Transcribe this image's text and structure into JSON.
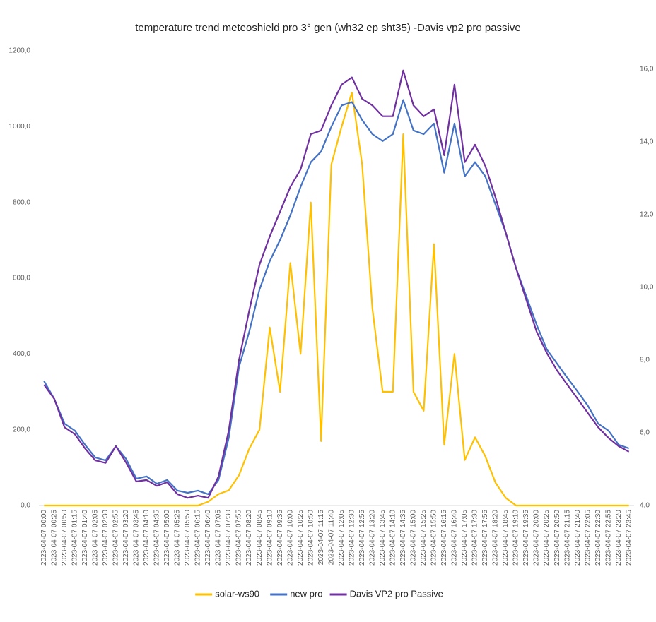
{
  "chart_data": {
    "type": "line",
    "title": "temperature trend meteoshield pro 3° gen (wh32 ep sht35) -Davis vp2 pro passive",
    "categories": [
      "2023-04-07 00:00",
      "2023-04-07 00:25",
      "2023-04-07 00:50",
      "2023-04-07 01:15",
      "2023-04-07 01:40",
      "2023-04-07 02:05",
      "2023-04-07 02:30",
      "2023-04-07 02:55",
      "2023-04-07 03:20",
      "2023-04-07 03:45",
      "2023-04-07 04:10",
      "2023-04-07 04:35",
      "2023-04-07 05:00",
      "2023-04-07 05:25",
      "2023-04-07 05:50",
      "2023-04-07 06:15",
      "2023-04-07 06:40",
      "2023-04-07 07:05",
      "2023-04-07 07:30",
      "2023-04-07 07:55",
      "2023-04-07 08:20",
      "2023-04-07 08:45",
      "2023-04-07 09:10",
      "2023-04-07 09:35",
      "2023-04-07 10:00",
      "2023-04-07 10:25",
      "2023-04-07 10:50",
      "2023-04-07 11:15",
      "2023-04-07 11:40",
      "2023-04-07 12:05",
      "2023-04-07 12:30",
      "2023-04-07 12:55",
      "2023-04-07 13:20",
      "2023-04-07 13:45",
      "2023-04-07 14:10",
      "2023-04-07 14:35",
      "2023-04-07 15:00",
      "2023-04-07 15:25",
      "2023-04-07 15:50",
      "2023-04-07 16:15",
      "2023-04-07 16:40",
      "2023-04-07 17:05",
      "2023-04-07 17:30",
      "2023-04-07 17:55",
      "2023-04-07 18:20",
      "2023-04-07 18:45",
      "2023-04-07 19:10",
      "2023-04-07 19:35",
      "2023-04-07 20:00",
      "2023-04-07 20:25",
      "2023-04-07 20:50",
      "2023-04-07 21:15",
      "2023-04-07 21:40",
      "2023-04-07 22:05",
      "2023-04-07 22:30",
      "2023-04-07 22:55",
      "2023-04-07 23:20",
      "2023-04-07 23:45"
    ],
    "series": [
      {
        "name": "solar-ws90",
        "color": "#ffc000",
        "axis": "y",
        "values": [
          0,
          0,
          0,
          0,
          0,
          0,
          0,
          0,
          0,
          0,
          0,
          0,
          0,
          0,
          0,
          0,
          10,
          30,
          40,
          80,
          150,
          200,
          470,
          300,
          640,
          400,
          800,
          170,
          900,
          1000,
          1090,
          900,
          520,
          300,
          300,
          980,
          300,
          250,
          690,
          160,
          400,
          120,
          180,
          130,
          60,
          20,
          0,
          0,
          0,
          0,
          0,
          0,
          0,
          0,
          0,
          0,
          0,
          0
        ]
      },
      {
        "name": "new pro",
        "color": "#4472c4",
        "axis": "y2",
        "values": [
          7.42,
          6.93,
          6.25,
          6.06,
          5.67,
          5.32,
          5.24,
          5.63,
          5.28,
          4.74,
          4.8,
          4.6,
          4.7,
          4.41,
          4.35,
          4.41,
          4.31,
          4.7,
          5.86,
          7.81,
          8.78,
          9.94,
          10.72,
          11.3,
          11.98,
          12.76,
          13.44,
          13.73,
          14.41,
          15.0,
          15.09,
          14.6,
          14.21,
          14.02,
          14.21,
          15.15,
          14.31,
          14.21,
          14.5,
          13.15,
          14.5,
          13.05,
          13.44,
          13.05,
          12.27,
          11.5,
          10.52,
          9.75,
          8.97,
          8.29,
          7.9,
          7.51,
          7.13,
          6.74,
          6.25,
          6.06,
          5.67,
          5.57
        ]
      },
      {
        "name": "Davis VP2 pro Passive",
        "color": "#7030a0",
        "axis": "y2",
        "values": [
          7.32,
          6.93,
          6.15,
          5.96,
          5.57,
          5.24,
          5.17,
          5.63,
          5.18,
          4.66,
          4.7,
          4.54,
          4.64,
          4.31,
          4.21,
          4.27,
          4.21,
          4.8,
          6.06,
          8.0,
          9.36,
          10.62,
          11.4,
          12.08,
          12.76,
          13.24,
          14.21,
          14.31,
          15.0,
          15.57,
          15.77,
          15.18,
          15.0,
          14.7,
          14.7,
          15.96,
          15.0,
          14.7,
          14.89,
          13.63,
          15.57,
          13.44,
          13.92,
          13.34,
          12.47,
          11.5,
          10.52,
          9.65,
          8.78,
          8.19,
          7.71,
          7.32,
          6.93,
          6.54,
          6.15,
          5.86,
          5.63,
          5.48
        ]
      }
    ],
    "ylim": [
      0,
      1200
    ],
    "yticks": [
      {
        "value": 0,
        "label": "0,0"
      },
      {
        "value": 200,
        "label": "200,0"
      },
      {
        "value": 400,
        "label": "400,0"
      },
      {
        "value": 600,
        "label": "600,0"
      },
      {
        "value": 800,
        "label": "800,0"
      },
      {
        "value": 1000,
        "label": "1000,0"
      },
      {
        "value": 1200,
        "label": "1200,0"
      }
    ],
    "y2lim": [
      4,
      16.5
    ],
    "y2ticks": [
      {
        "value": 4,
        "label": "4,0"
      },
      {
        "value": 6,
        "label": "6,0"
      },
      {
        "value": 8,
        "label": "8,0"
      },
      {
        "value": 10,
        "label": "10,0"
      },
      {
        "value": 12,
        "label": "12,0"
      },
      {
        "value": 14,
        "label": "14,0"
      },
      {
        "value": 16,
        "label": "16,0"
      }
    ],
    "grid": false,
    "legend": "bottom"
  }
}
